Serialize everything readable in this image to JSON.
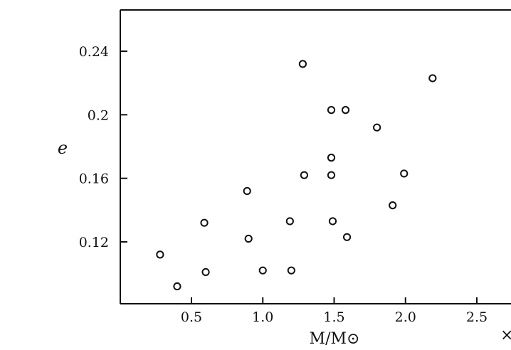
{
  "chart_data": {
    "type": "scatter",
    "title": "",
    "xlabel": "M/M⊙",
    "ylabel": "e",
    "xlim": [
      0.0,
      2.75
    ],
    "ylim": [
      0.085,
      0.26
    ],
    "xticks": [
      {
        "value": 0.5,
        "label": "0.5"
      },
      {
        "value": 1.0,
        "label": "1.0"
      },
      {
        "value": 1.5,
        "label": "1.5"
      },
      {
        "value": 2.0,
        "label": "2.0"
      },
      {
        "value": 2.5,
        "label": "2.5"
      }
    ],
    "yticks": [
      {
        "value": 0.12,
        "label": "0.12"
      },
      {
        "value": 0.16,
        "label": "0.16"
      },
      {
        "value": 0.2,
        "label": "0.2"
      },
      {
        "value": 0.24,
        "label": "0.24"
      }
    ],
    "grid": false,
    "legend": "none",
    "clipped_mark": "×",
    "points": [
      {
        "x": 0.28,
        "y": 0.112
      },
      {
        "x": 0.4,
        "y": 0.092
      },
      {
        "x": 0.59,
        "y": 0.132
      },
      {
        "x": 0.6,
        "y": 0.101
      },
      {
        "x": 0.89,
        "y": 0.152
      },
      {
        "x": 0.9,
        "y": 0.122
      },
      {
        "x": 1.0,
        "y": 0.102
      },
      {
        "x": 1.19,
        "y": 0.133
      },
      {
        "x": 1.2,
        "y": 0.102
      },
      {
        "x": 1.28,
        "y": 0.232
      },
      {
        "x": 1.29,
        "y": 0.162
      },
      {
        "x": 1.48,
        "y": 0.203
      },
      {
        "x": 1.48,
        "y": 0.173
      },
      {
        "x": 1.48,
        "y": 0.162
      },
      {
        "x": 1.49,
        "y": 0.133
      },
      {
        "x": 1.58,
        "y": 0.203
      },
      {
        "x": 1.59,
        "y": 0.123
      },
      {
        "x": 1.8,
        "y": 0.192
      },
      {
        "x": 1.91,
        "y": 0.143
      },
      {
        "x": 1.99,
        "y": 0.163
      },
      {
        "x": 2.19,
        "y": 0.223
      }
    ]
  }
}
